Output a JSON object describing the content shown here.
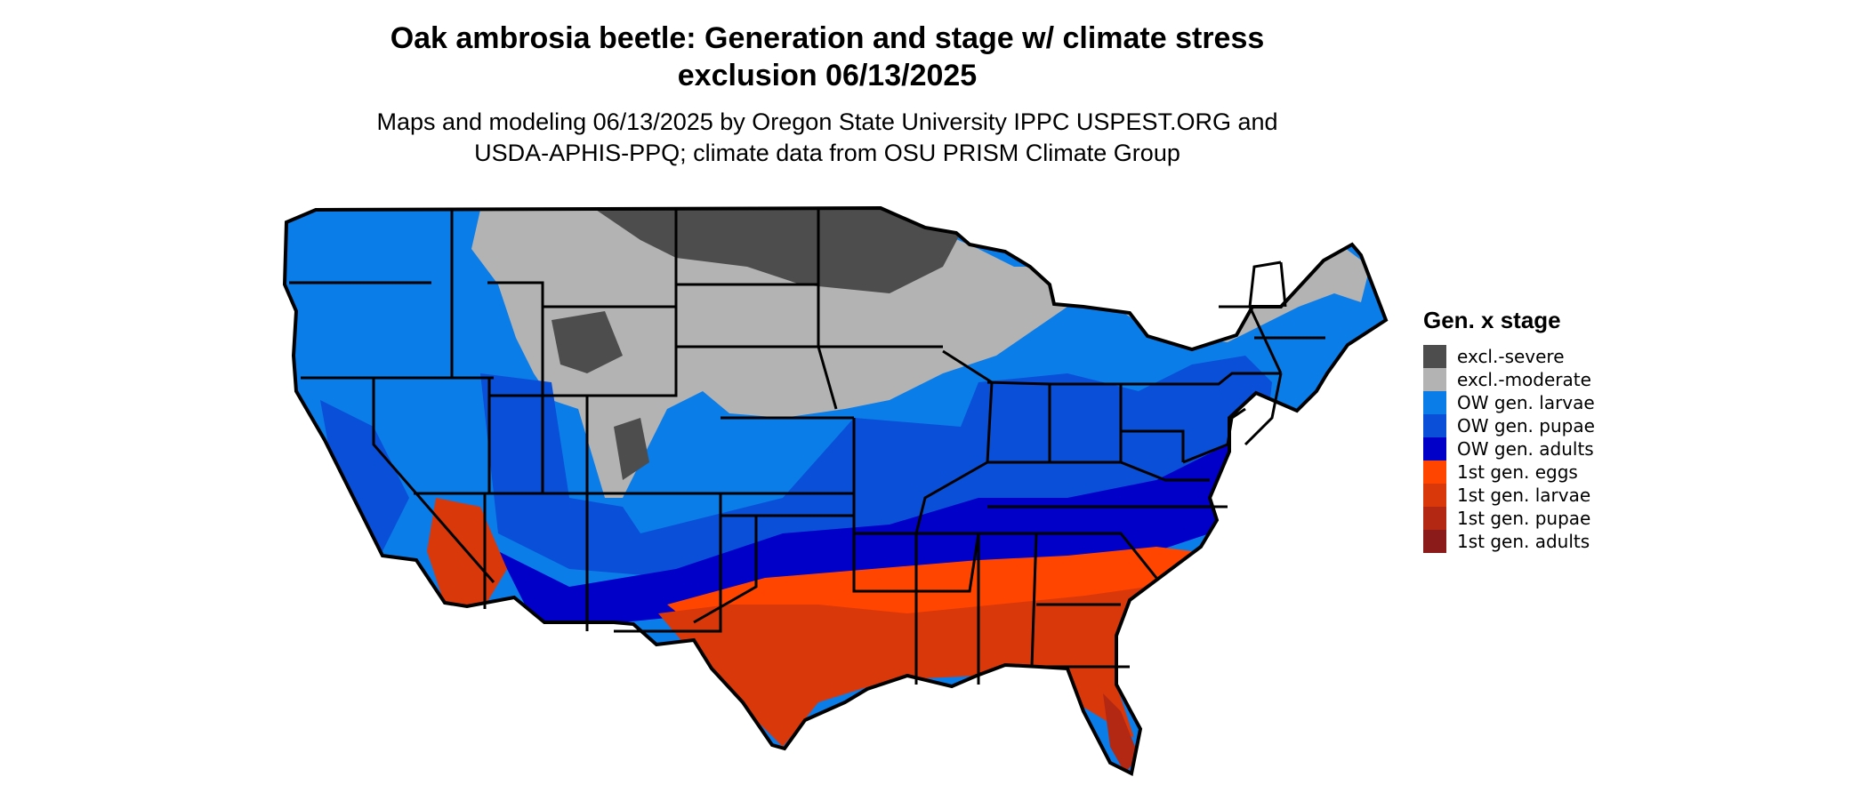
{
  "title": "Oak ambrosia beetle: Generation and stage w/ climate stress\nexclusion 06/13/2025",
  "subtitle": "Maps and modeling 06/13/2025 by Oregon State University IPPC USPEST.ORG and\nUSDA-APHIS-PPQ; climate data from OSU PRISM Climate Group",
  "legend": {
    "title": "Gen. x stage",
    "items": [
      {
        "label": "excl.-severe",
        "color": "#4d4d4d"
      },
      {
        "label": "excl.-moderate",
        "color": "#b3b3b3"
      },
      {
        "label": "OW gen. larvae",
        "color": "#0a7de8"
      },
      {
        "label": "OW gen. pupae",
        "color": "#0a4fd8"
      },
      {
        "label": "OW gen. adults",
        "color": "#0000c8"
      },
      {
        "label": "1st gen. eggs",
        "color": "#ff4500"
      },
      {
        "label": "1st gen. larvae",
        "color": "#d9380a"
      },
      {
        "label": "1st gen. pupae",
        "color": "#b32812"
      },
      {
        "label": "1st gen. adults",
        "color": "#8b1a1a"
      }
    ]
  },
  "map": {
    "region": "contiguous-united-states",
    "zone_colors": {
      "excl_severe": "#4d4d4d",
      "excl_moderate": "#b3b3b3",
      "ow_larvae": "#0a7de8",
      "ow_pupae": "#0a4fd8",
      "ow_adults": "#0000c8",
      "gen1_eggs": "#ff4500",
      "gen1_larvae": "#d9380a",
      "gen1_pupae": "#b32812",
      "gen1_adults": "#8b1a1a"
    },
    "border_color": "#000000"
  }
}
